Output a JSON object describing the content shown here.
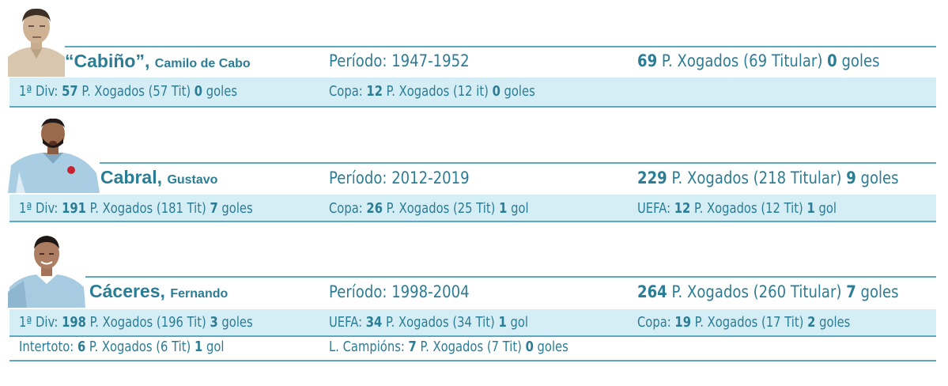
{
  "colors": {
    "text": "#2b7d95",
    "line": "#5fa9c0",
    "band": "#d5edf4"
  },
  "players": [
    {
      "surname": "“Cabiño”,",
      "given_name": "Camilo de Cabo",
      "period": "Período: 1947-1952",
      "total": {
        "matches": "69",
        "mid": " P. Xogados  (69 Titular) ",
        "goals": "0",
        "goals_label": " goles"
      },
      "stats": [
        {
          "label": "1ª Div: ",
          "matches": "57",
          "mid": " P. Xogados (57 Tit) ",
          "goals": "0",
          "goals_label": " goles"
        },
        {
          "label": "Copa: ",
          "matches": "12",
          "mid": " P. Xogados (12 it) ",
          "goals": "0",
          "goals_label": " goles"
        }
      ]
    },
    {
      "surname": "Cabral,",
      "given_name": "Gustavo",
      "period": "Período: 2012-2019",
      "total": {
        "matches": "229",
        "mid": " P. Xogados  (218 Titular)  ",
        "goals": "9",
        "goals_label": " goles"
      },
      "stats": [
        {
          "label": "1ª Div: ",
          "matches": "191",
          "mid": " P. Xogados (181 Tit) ",
          "goals": "7",
          "goals_label": " goles"
        },
        {
          "label": "Copa: ",
          "matches": "26",
          "mid": " P. Xogados (25 Tit) ",
          "goals": "1",
          "goals_label": " gol"
        },
        {
          "label": "UEFA: ",
          "matches": "12",
          "mid": " P. Xogados (12 Tit) ",
          "goals": "1",
          "goals_label": " gol"
        }
      ]
    },
    {
      "surname": "Cáceres,",
      "given_name": "Fernando",
      "period": "Período: 1998-2004",
      "total": {
        "matches": "264",
        "mid": " P. Xogados  (260 Titular)  ",
        "goals": "7",
        "goals_label": " goles"
      },
      "stats": [
        {
          "label": "1ª Div: ",
          "matches": "198",
          "mid": " P. Xogados (196 Tit) ",
          "goals": "3",
          "goals_label": " goles"
        },
        {
          "label": "UEFA: ",
          "matches": "34",
          "mid": " P. Xogados (34 Tit) ",
          "goals": "1",
          "goals_label": " gol"
        },
        {
          "label": "Copa: ",
          "matches": "19",
          "mid": " P. Xogados (17 Tit) ",
          "goals": "2",
          "goals_label": " goles"
        },
        {
          "label": "Intertoto: ",
          "matches": "6",
          "mid": " P. Xogados (6 Tit) ",
          "goals": "1",
          "goals_label": " gol"
        },
        {
          "label": "L. Campións: ",
          "matches": "7",
          "mid": " P. Xogados (7 Tit) ",
          "goals": "0",
          "goals_label": " goles"
        }
      ]
    }
  ]
}
